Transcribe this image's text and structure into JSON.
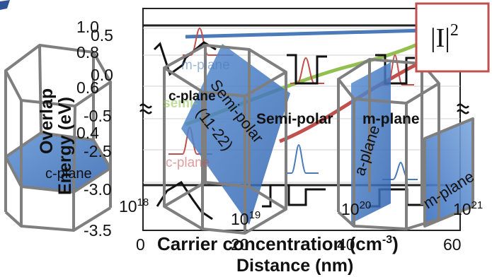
{
  "chart_data": {
    "type": "line",
    "panels": [
      {
        "name": "energy-band-profile",
        "ylabel": "Energy (eV)",
        "xlabel": "Distance (nm)",
        "y_ticks": [
          "0.5",
          "0.0",
          "-0.5",
          "-2.5",
          "-3.0",
          "-3.5"
        ],
        "x_ticks": [
          "0",
          "20",
          "40",
          "60"
        ],
        "xlim": [
          0,
          60
        ],
        "ylim": [
          -3.5,
          0.8
        ],
        "axis_break": true
      },
      {
        "name": "overlap-vs-carrier-concentration",
        "ylabel": "Overlap",
        "xlabel_main": "Carrier concentration (cm",
        "xlabel_sup": "-3",
        "xlabel_end": ")",
        "y_ticks": [
          "1.0",
          "0.8",
          "0.6",
          "0.4"
        ],
        "x_ticks": [
          {
            "base": "10",
            "exp": "18"
          },
          {
            "base": "10",
            "exp": "19"
          },
          {
            "base": "10",
            "exp": "20"
          },
          {
            "base": "10",
            "exp": "21"
          }
        ],
        "x_scale": "log",
        "xlim": [
          1e+18,
          1e+21
        ],
        "ylim": [
          0.35,
          1.05
        ],
        "series": [
          {
            "name": "m-plane",
            "color": "#4a7ab8",
            "x": [
              1e+18,
              1e+19,
              1e+20,
              1e+21
            ],
            "y": [
              0.97,
              0.975,
              0.98,
              0.985
            ]
          },
          {
            "name": "semi-polar",
            "color": "#92c050",
            "x": [
              1e+18,
              1e+19,
              1e+20,
              1e+21
            ],
            "y": [
              0.5,
              0.62,
              0.8,
              0.95
            ]
          },
          {
            "name": "c-plane",
            "color": "#c0504d",
            "x": [
              1e+18,
              1e+19,
              1e+20,
              1e+21
            ],
            "y": [
              0.2,
              0.3,
              0.6,
              0.87
            ]
          }
        ]
      }
    ],
    "series_labels": [
      "c-plane",
      "semi-polar",
      "m-plane",
      "c-plane",
      "semi-",
      "m-plane"
    ]
  },
  "labels": {
    "c_plane": "c-plane",
    "semi_polar": "Semi-polar",
    "semi_polar_orientation": "(11-22)",
    "semi_polar_bold": "Semi-polar",
    "m_plane": "m-plane",
    "a_plane": "a-plane",
    "c_plane_hex": "c-plane",
    "m_plane_hex": "m-plane"
  },
  "legend_box": {
    "main": "|I|",
    "sup": "2"
  },
  "colors": {
    "m_plane_curve": "#4a7ab8",
    "semi_polar_curve": "#92c050",
    "c_plane_curve": "#c0504d",
    "facet_fill": "#4f81bd",
    "prism_outline": "#7f7f7f",
    "box_border": "#c0504d"
  }
}
